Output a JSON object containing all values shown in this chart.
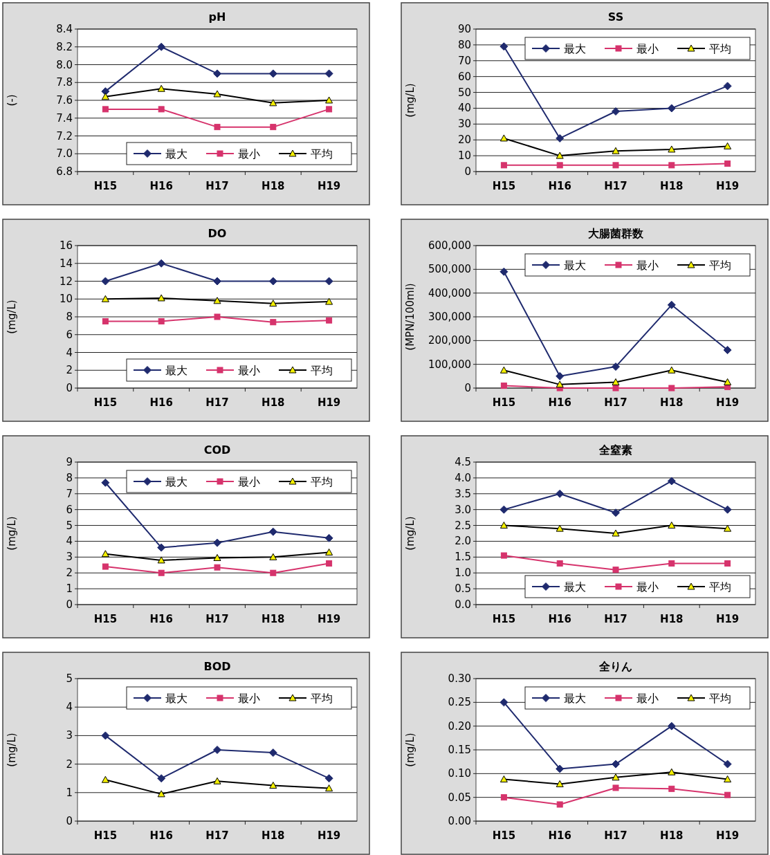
{
  "chart_data": [
    {
      "type": "line",
      "title": "pH",
      "ylabel": "(-)",
      "categories": [
        "H15",
        "H16",
        "H17",
        "H18",
        "H19"
      ],
      "ylim": [
        6.8,
        8.4
      ],
      "yticks": [
        6.8,
        {
          "value": 7,
          "label": "7.0"
        },
        7.2,
        7.4,
        7.6,
        7.8,
        {
          "value": 8,
          "label": "8.0"
        },
        8.2,
        8.4
      ],
      "grid": "y",
      "legend": "bottom right",
      "series": [
        {
          "name": "最大",
          "color": "#1f2a6e",
          "marker": "diamond",
          "values": [
            7.7,
            8.2,
            7.9,
            7.9,
            7.9
          ]
        },
        {
          "name": "最小",
          "color": "#d6336c",
          "marker": "square",
          "values": [
            7.5,
            7.5,
            7.3,
            7.3,
            7.5
          ]
        },
        {
          "name": "平均",
          "color": "#000000",
          "marker": "triangle",
          "values": [
            7.64,
            7.73,
            7.67,
            7.57,
            7.6
          ]
        }
      ]
    },
    {
      "type": "line",
      "title": "SS",
      "ylabel": "(mg/L)",
      "categories": [
        "H15",
        "H16",
        "H17",
        "H18",
        "H19"
      ],
      "ylim": [
        0,
        90
      ],
      "yticks": [
        0,
        10,
        20,
        30,
        40,
        50,
        60,
        70,
        80,
        90
      ],
      "grid": "y",
      "legend": "top right",
      "series": [
        {
          "name": "最大",
          "color": "#1f2a6e",
          "marker": "diamond",
          "values": [
            79,
            21,
            38,
            40,
            54
          ]
        },
        {
          "name": "最小",
          "color": "#d6336c",
          "marker": "square",
          "values": [
            4,
            4,
            4,
            4,
            5
          ]
        },
        {
          "name": "平均",
          "color": "#000000",
          "marker": "triangle",
          "values": [
            21,
            10,
            13,
            14,
            16
          ]
        }
      ]
    },
    {
      "type": "line",
      "title": "DO",
      "ylabel": "(mg/L)",
      "categories": [
        "H15",
        "H16",
        "H17",
        "H18",
        "H19"
      ],
      "ylim": [
        0,
        16
      ],
      "yticks": [
        0,
        2,
        4,
        6,
        8,
        10,
        12,
        14,
        16
      ],
      "grid": "y",
      "legend": "bottom right",
      "series": [
        {
          "name": "最大",
          "color": "#1f2a6e",
          "marker": "diamond",
          "values": [
            12,
            14,
            12,
            12,
            12
          ]
        },
        {
          "name": "最小",
          "color": "#d6336c",
          "marker": "square",
          "values": [
            7.5,
            7.5,
            8,
            7.4,
            7.6
          ]
        },
        {
          "name": "平均",
          "color": "#000000",
          "marker": "triangle",
          "values": [
            10,
            10.1,
            9.8,
            9.5,
            9.7
          ]
        }
      ]
    },
    {
      "type": "line",
      "title": "大腸菌群数",
      "ylabel": "(MPN/100ml)",
      "categories": [
        "H15",
        "H16",
        "H17",
        "H18",
        "H19"
      ],
      "ylim": [
        0,
        600000
      ],
      "yticks": [
        0,
        {
          "value": 100000,
          "label": "100,000"
        },
        {
          "value": 200000,
          "label": "200,000"
        },
        {
          "value": 300000,
          "label": "300,000"
        },
        {
          "value": 400000,
          "label": "400,000"
        },
        {
          "value": 500000,
          "label": "500,000"
        },
        {
          "value": 600000,
          "label": "600,000"
        }
      ],
      "grid": "y",
      "legend": "top right",
      "series": [
        {
          "name": "最大",
          "color": "#1f2a6e",
          "marker": "diamond",
          "values": [
            490000,
            50000,
            90000,
            350000,
            160000
          ]
        },
        {
          "name": "最小",
          "color": "#d6336c",
          "marker": "square",
          "values": [
            10000,
            0,
            0,
            0,
            5000
          ]
        },
        {
          "name": "平均",
          "color": "#000000",
          "marker": "triangle",
          "values": [
            75000,
            15000,
            25000,
            75000,
            25000
          ]
        }
      ]
    },
    {
      "type": "line",
      "title": "COD",
      "ylabel": "(mg/L)",
      "categories": [
        "H15",
        "H16",
        "H17",
        "H18",
        "H19"
      ],
      "ylim": [
        0,
        9
      ],
      "yticks": [
        0,
        1,
        2,
        3,
        4,
        5,
        6,
        7,
        8,
        9
      ],
      "grid": "y",
      "legend": "top right",
      "series": [
        {
          "name": "最大",
          "color": "#1f2a6e",
          "marker": "diamond",
          "values": [
            7.7,
            3.6,
            3.9,
            4.6,
            4.2
          ]
        },
        {
          "name": "最小",
          "color": "#d6336c",
          "marker": "square",
          "values": [
            2.4,
            2.0,
            2.35,
            2.0,
            2.6
          ]
        },
        {
          "name": "平均",
          "color": "#000000",
          "marker": "triangle",
          "values": [
            3.2,
            2.8,
            2.95,
            3.0,
            3.3
          ]
        }
      ]
    },
    {
      "type": "line",
      "title": "全窒素",
      "ylabel": "(mg/L)",
      "categories": [
        "H15",
        "H16",
        "H17",
        "H18",
        "H19"
      ],
      "ylim": [
        0,
        4.5
      ],
      "yticks": [
        {
          "value": 0,
          "label": "0.0"
        },
        0.5,
        {
          "value": 1,
          "label": "1.0"
        },
        1.5,
        {
          "value": 2,
          "label": "2.0"
        },
        2.5,
        {
          "value": 3,
          "label": "3.0"
        },
        3.5,
        {
          "value": 4,
          "label": "4.0"
        },
        4.5
      ],
      "grid": "y",
      "legend": "bottom right",
      "series": [
        {
          "name": "最大",
          "color": "#1f2a6e",
          "marker": "diamond",
          "values": [
            3.0,
            3.5,
            2.9,
            3.9,
            3.0
          ]
        },
        {
          "name": "最小",
          "color": "#d6336c",
          "marker": "square",
          "values": [
            1.55,
            1.3,
            1.1,
            1.3,
            1.3
          ]
        },
        {
          "name": "平均",
          "color": "#000000",
          "marker": "triangle",
          "values": [
            2.5,
            2.4,
            2.25,
            2.5,
            2.4
          ]
        }
      ]
    },
    {
      "type": "line",
      "title": "BOD",
      "ylabel": "(mg/L)",
      "categories": [
        "H15",
        "H16",
        "H17",
        "H18",
        "H19"
      ],
      "ylim": [
        0,
        5
      ],
      "yticks": [
        0,
        1,
        2,
        3,
        4,
        5
      ],
      "grid": "y",
      "legend": "top right",
      "series": [
        {
          "name": "最大",
          "color": "#1f2a6e",
          "marker": "diamond",
          "values": [
            3.0,
            1.5,
            2.5,
            2.4,
            1.5
          ]
        },
        {
          "name": "最小",
          "color": "#d6336c",
          "marker": "square",
          "values": [
            null,
            null,
            null,
            null,
            null
          ]
        },
        {
          "name": "平均",
          "color": "#000000",
          "marker": "triangle",
          "values": [
            1.45,
            0.95,
            1.4,
            1.25,
            1.15
          ]
        }
      ]
    },
    {
      "type": "line",
      "title": "全りん",
      "ylabel": "(mg/L)",
      "categories": [
        "H15",
        "H16",
        "H17",
        "H18",
        "H19"
      ],
      "ylim": [
        0,
        0.3
      ],
      "yticks": [
        {
          "value": 0,
          "label": "0.00"
        },
        {
          "value": 0.05,
          "label": "0.05"
        },
        {
          "value": 0.1,
          "label": "0.10"
        },
        {
          "value": 0.15,
          "label": "0.15"
        },
        {
          "value": 0.2,
          "label": "0.20"
        },
        {
          "value": 0.25,
          "label": "0.25"
        },
        {
          "value": 0.3,
          "label": "0.30"
        }
      ],
      "grid": "y",
      "legend": "top right",
      "series": [
        {
          "name": "最大",
          "color": "#1f2a6e",
          "marker": "diamond",
          "values": [
            0.25,
            0.11,
            0.12,
            0.2,
            0.12
          ]
        },
        {
          "name": "最小",
          "color": "#d6336c",
          "marker": "square",
          "values": [
            0.05,
            0.035,
            0.07,
            0.068,
            0.055
          ]
        },
        {
          "name": "平均",
          "color": "#000000",
          "marker": "triangle",
          "values": [
            0.088,
            0.078,
            0.092,
            0.103,
            0.088
          ]
        }
      ]
    }
  ]
}
